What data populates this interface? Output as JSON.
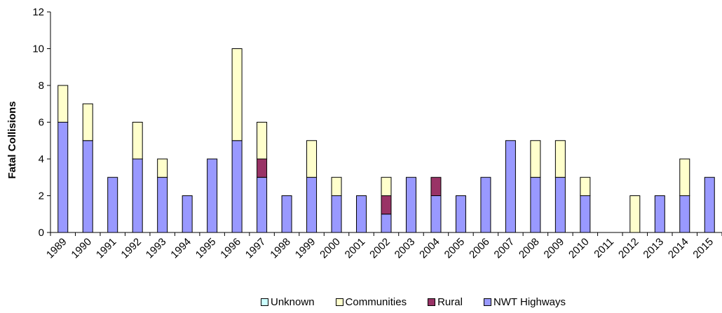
{
  "chart_data": {
    "type": "bar",
    "stacked": true,
    "categories": [
      "1989",
      "1990",
      "1991",
      "1992",
      "1993",
      "1994",
      "1995",
      "1996",
      "1997",
      "1998",
      "1999",
      "2000",
      "2001",
      "2002",
      "2003",
      "2004",
      "2005",
      "2006",
      "2007",
      "2008",
      "2009",
      "2010",
      "2011",
      "2012",
      "2013",
      "2014",
      "2015"
    ],
    "series": [
      {
        "name": "NWT Highways",
        "color": "#9999ff",
        "values": [
          6,
          5,
          3,
          4,
          3,
          2,
          4,
          5,
          3,
          2,
          3,
          2,
          2,
          1,
          3,
          2,
          2,
          3,
          5,
          3,
          3,
          2,
          0,
          0,
          2,
          2,
          3
        ]
      },
      {
        "name": "Rural",
        "color": "#993366",
        "values": [
          0,
          0,
          0,
          0,
          0,
          0,
          0,
          0,
          1,
          0,
          0,
          0,
          0,
          1,
          0,
          1,
          0,
          0,
          0,
          0,
          0,
          0,
          0,
          0,
          0,
          0,
          0
        ]
      },
      {
        "name": "Communities",
        "color": "#ffffcc",
        "values": [
          2,
          2,
          0,
          2,
          1,
          0,
          0,
          5,
          2,
          0,
          2,
          1,
          0,
          1,
          0,
          0,
          0,
          0,
          0,
          2,
          2,
          1,
          0,
          2,
          0,
          2,
          0
        ]
      },
      {
        "name": "Unknown",
        "color": "#ccffff",
        "values": [
          0,
          0,
          0,
          0,
          0,
          0,
          0,
          0,
          0,
          0,
          0,
          0,
          0,
          0,
          0,
          0,
          0,
          0,
          0,
          0,
          0,
          0,
          0,
          0,
          0,
          0,
          0
        ]
      }
    ],
    "legend_order": [
      "Unknown",
      "Communities",
      "Rural",
      "NWT Highways"
    ],
    "xlabel": "",
    "ylabel": "Fatal Collisions",
    "ylim": [
      0,
      12
    ],
    "yticks": [
      0,
      2,
      4,
      6,
      8,
      10,
      12
    ],
    "grid": false,
    "legend_position": "bottom"
  }
}
